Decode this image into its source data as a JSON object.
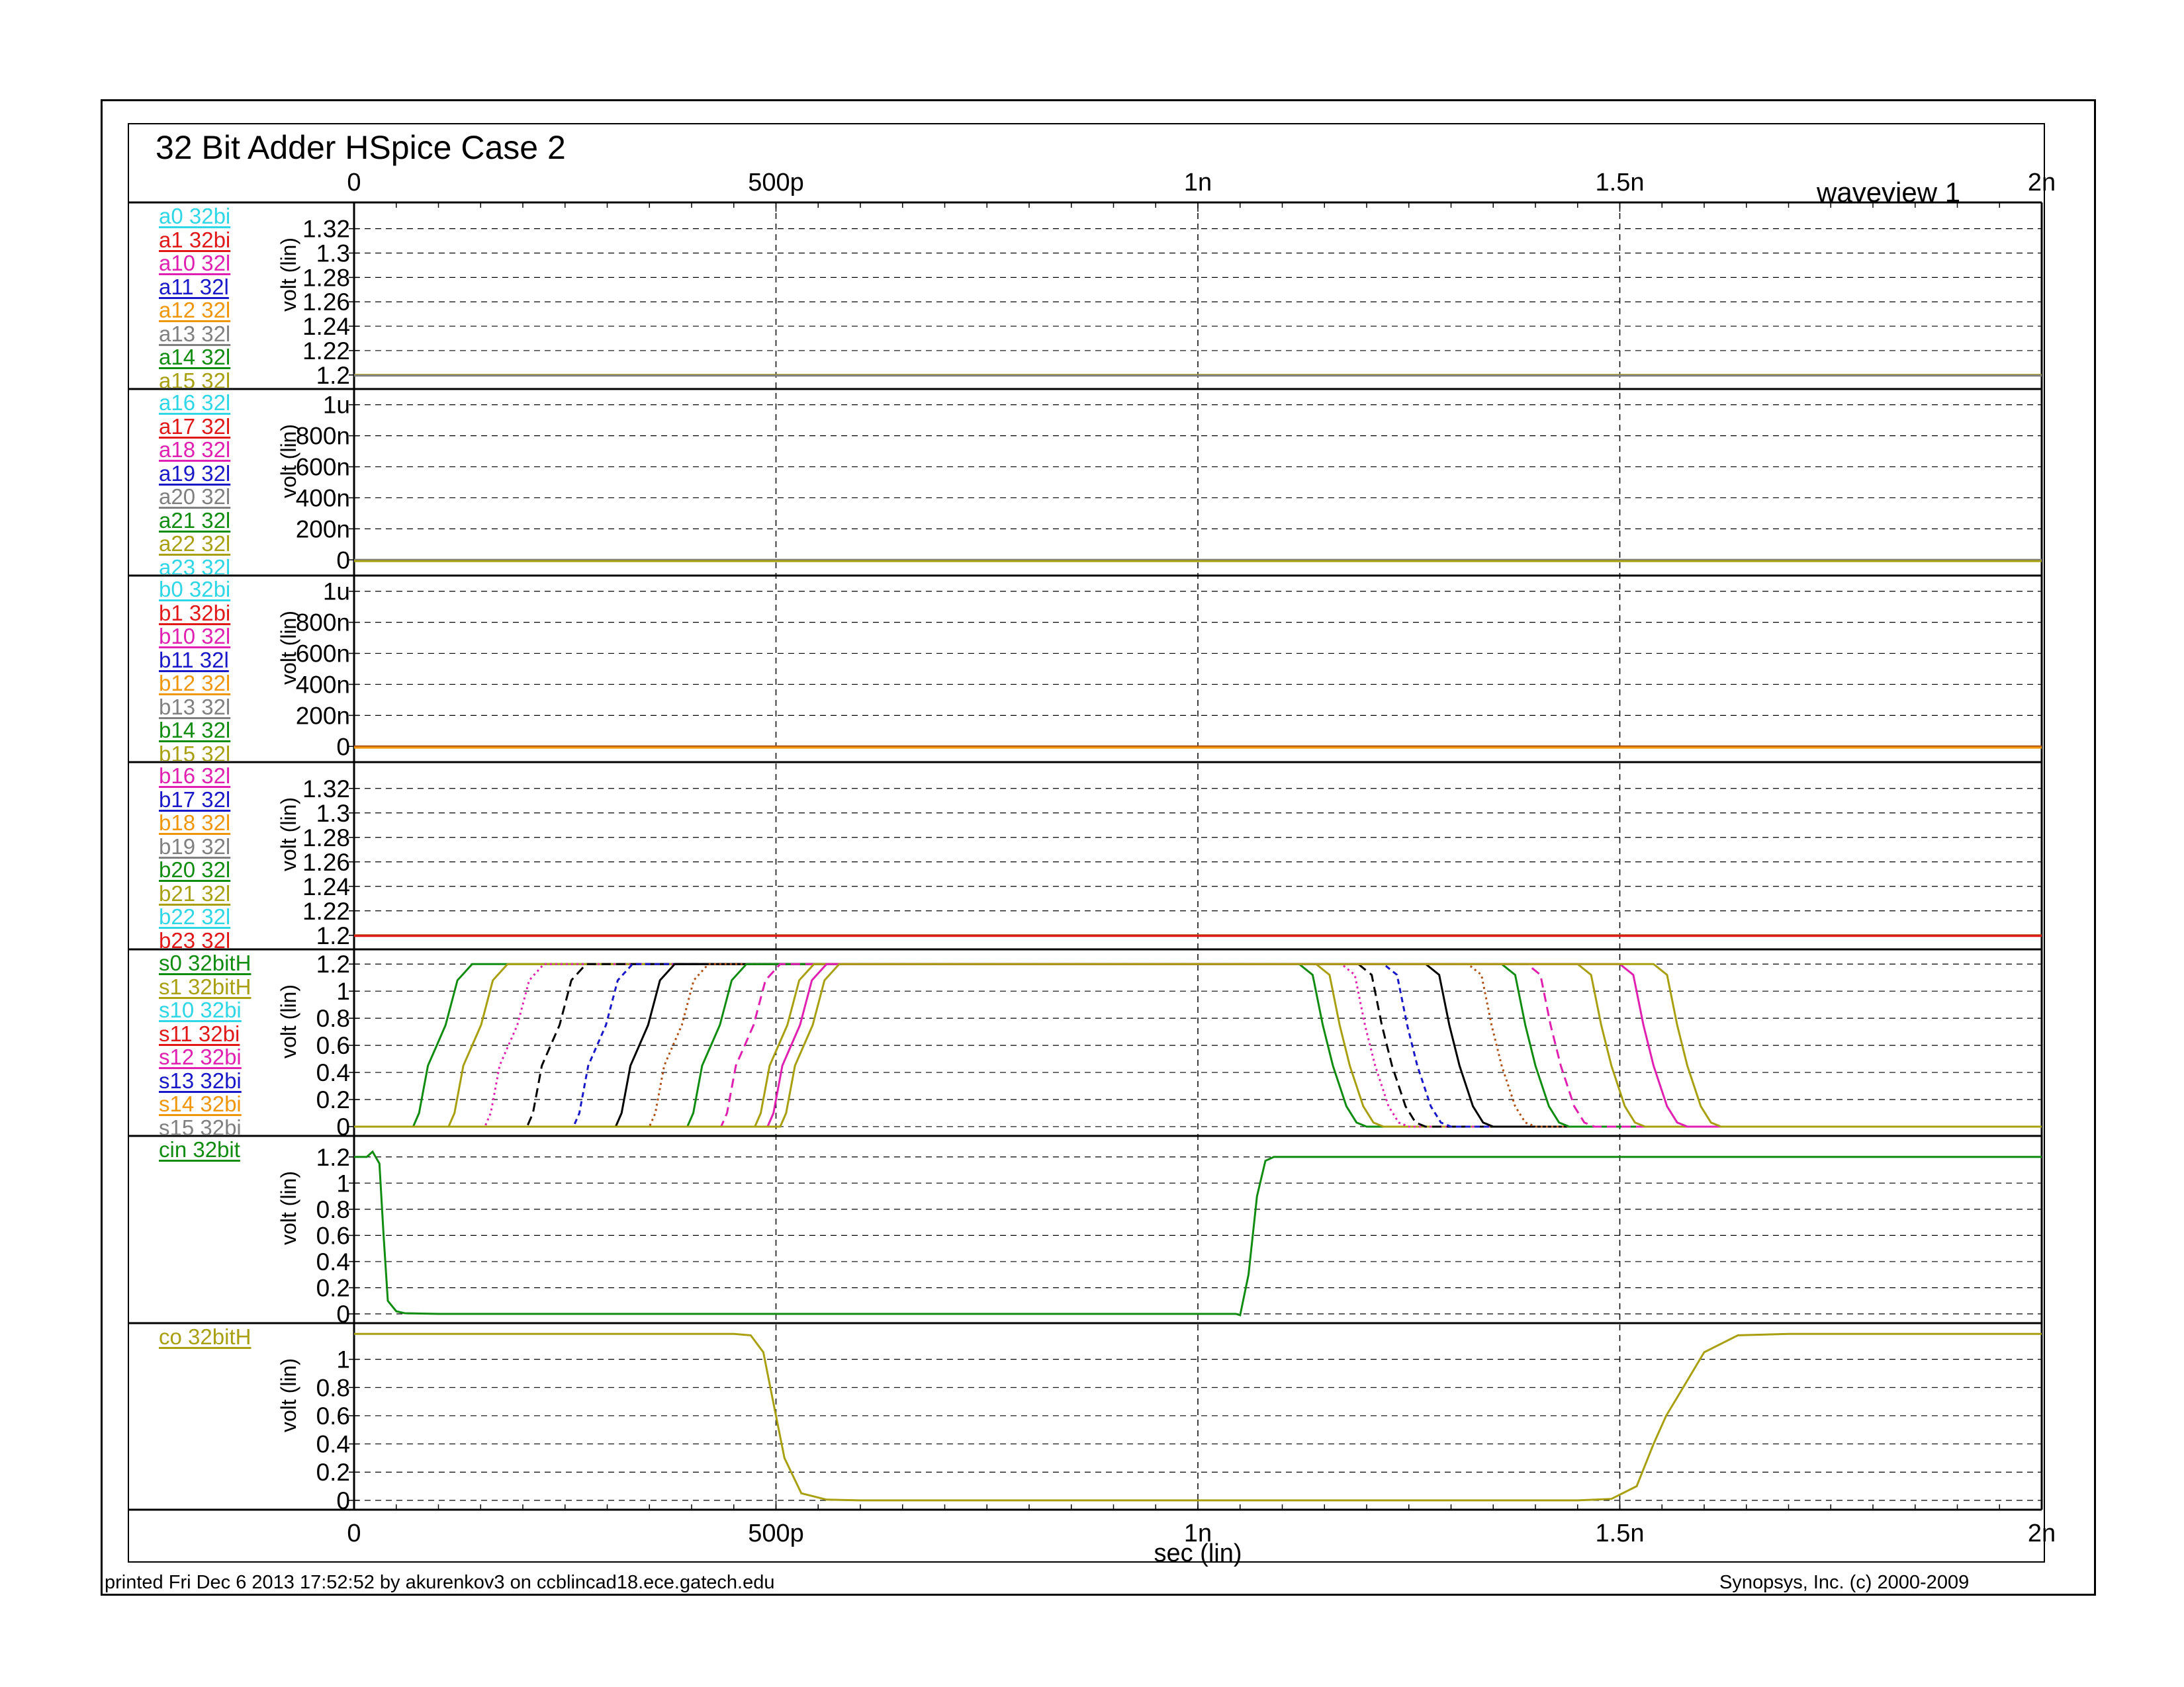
{
  "title": "32 Bit Adder HSpice Case 2",
  "window_label": "waveview 1",
  "footer_left": "printed Fri Dec  6 2013 17:52:52 by akurenkov3 on ccblincad18.ece.gatech.edu",
  "footer_right": "Synopsys, Inc. (c) 2000-2009",
  "colors": {
    "cyan": "#2ed6e6",
    "red": "#e01818",
    "magenta": "#e020b0",
    "blue": "#1818c8",
    "orange": "#f0960a",
    "gray": "#808080",
    "green": "#108c10",
    "olive": "#a8a010",
    "black": "#000000",
    "brown": "#b05010"
  },
  "chart_data": {
    "type": "line",
    "xlabel": "sec (lin)",
    "xlim": [
      0,
      2e-09
    ],
    "xticks": [
      {
        "v": 0,
        "label": "0"
      },
      {
        "v": 5e-10,
        "label": "500p"
      },
      {
        "v": 1e-09,
        "label": "1n"
      },
      {
        "v": 1.5e-09,
        "label": "1.5n"
      },
      {
        "v": 2e-09,
        "label": "2n"
      }
    ],
    "panels": [
      {
        "ylabel": "volt (lin)",
        "ylim": [
          1.195,
          1.335
        ],
        "yticks": [
          {
            "v": 1.32,
            "label": "1.32"
          },
          {
            "v": 1.3,
            "label": "1.3"
          },
          {
            "v": 1.28,
            "label": "1.28"
          },
          {
            "v": 1.26,
            "label": "1.26"
          },
          {
            "v": 1.24,
            "label": "1.24"
          },
          {
            "v": 1.22,
            "label": "1.22"
          },
          {
            "v": 1.2,
            "label": "1.2"
          }
        ],
        "legend": [
          {
            "label": "a0 32bi",
            "color": "cyan"
          },
          {
            "label": "a1 32bi",
            "color": "red"
          },
          {
            "label": "a10 32l",
            "color": "magenta"
          },
          {
            "label": "a11 32l",
            "color": "blue"
          },
          {
            "label": "a12 32l",
            "color": "orange"
          },
          {
            "label": "a13 32l",
            "color": "gray"
          },
          {
            "label": "a14 32l",
            "color": "green"
          },
          {
            "label": "a15 32l",
            "color": "olive"
          }
        ],
        "series": [
          {
            "color": "olive",
            "x": [
              0,
              2e-09
            ],
            "y": [
              1.2,
              1.2
            ]
          },
          {
            "color": "gray",
            "x": [
              0,
              2e-09
            ],
            "y": [
              1.1995,
              1.1995
            ]
          }
        ]
      },
      {
        "ylabel": "volt (lin)",
        "ylim": [
          -5e-08,
          1.05e-06
        ],
        "yticks": [
          {
            "v": 1e-06,
            "label": "1u"
          },
          {
            "v": 8e-07,
            "label": "800n"
          },
          {
            "v": 6e-07,
            "label": "600n"
          },
          {
            "v": 4e-07,
            "label": "400n"
          },
          {
            "v": 2e-07,
            "label": "200n"
          },
          {
            "v": 0,
            "label": "0"
          }
        ],
        "legend": [
          {
            "label": "a16 32l",
            "color": "cyan"
          },
          {
            "label": "a17 32l",
            "color": "red"
          },
          {
            "label": "a18 32l",
            "color": "magenta"
          },
          {
            "label": "a19 32l",
            "color": "blue"
          },
          {
            "label": "a20 32l",
            "color": "gray"
          },
          {
            "label": "a21 32l",
            "color": "green"
          },
          {
            "label": "a22 32l",
            "color": "olive"
          },
          {
            "label": "a23 32l",
            "color": "cyan"
          }
        ],
        "series": [
          {
            "color": "gray",
            "x": [
              0,
              2e-09
            ],
            "y": [
              0,
              0
            ]
          },
          {
            "color": "olive",
            "x": [
              0,
              2e-09
            ],
            "y": [
              -8e-09,
              -8e-09
            ]
          }
        ]
      },
      {
        "ylabel": "volt (lin)",
        "ylim": [
          -5e-08,
          1.05e-06
        ],
        "yticks": [
          {
            "v": 1e-06,
            "label": "1u"
          },
          {
            "v": 8e-07,
            "label": "800n"
          },
          {
            "v": 6e-07,
            "label": "600n"
          },
          {
            "v": 4e-07,
            "label": "400n"
          },
          {
            "v": 2e-07,
            "label": "200n"
          },
          {
            "v": 0,
            "label": "0"
          }
        ],
        "legend": [
          {
            "label": "b0 32bi",
            "color": "cyan"
          },
          {
            "label": "b1 32bi",
            "color": "red"
          },
          {
            "label": "b10 32l",
            "color": "magenta"
          },
          {
            "label": "b11 32l",
            "color": "blue"
          },
          {
            "label": "b12 32l",
            "color": "orange"
          },
          {
            "label": "b13 32l",
            "color": "gray"
          },
          {
            "label": "b14 32l",
            "color": "green"
          },
          {
            "label": "b15 32l",
            "color": "olive"
          }
        ],
        "series": [
          {
            "color": "brown",
            "x": [
              0,
              2e-09
            ],
            "y": [
              0,
              0
            ]
          },
          {
            "color": "orange",
            "x": [
              0,
              2e-09
            ],
            "y": [
              -8e-09,
              -8e-09
            ]
          }
        ]
      },
      {
        "ylabel": "volt (lin)",
        "ylim": [
          1.195,
          1.335
        ],
        "yticks": [
          {
            "v": 1.32,
            "label": "1.32"
          },
          {
            "v": 1.3,
            "label": "1.3"
          },
          {
            "v": 1.28,
            "label": "1.28"
          },
          {
            "v": 1.26,
            "label": "1.26"
          },
          {
            "v": 1.24,
            "label": "1.24"
          },
          {
            "v": 1.22,
            "label": "1.22"
          },
          {
            "v": 1.2,
            "label": "1.2"
          }
        ],
        "legend": [
          {
            "label": "b16 32l",
            "color": "magenta"
          },
          {
            "label": "b17 32l",
            "color": "blue"
          },
          {
            "label": "b18 32l",
            "color": "orange"
          },
          {
            "label": "b19 32l",
            "color": "gray"
          },
          {
            "label": "b20 32l",
            "color": "green"
          },
          {
            "label": "b21 32l",
            "color": "olive"
          },
          {
            "label": "b22 32l",
            "color": "cyan"
          },
          {
            "label": "b23 32l",
            "color": "red"
          }
        ],
        "series": [
          {
            "color": "brown",
            "x": [
              0,
              2e-09
            ],
            "y": [
              1.2,
              1.2
            ]
          },
          {
            "color": "red",
            "x": [
              0,
              2e-09
            ],
            "y": [
              1.1995,
              1.1995
            ]
          }
        ]
      },
      {
        "ylabel": "volt (lin)",
        "ylim": [
          -0.01,
          1.25
        ],
        "yticks": [
          {
            "v": 1.2,
            "label": "1.2"
          },
          {
            "v": 1,
            "label": "1"
          },
          {
            "v": 0.8,
            "label": "0.8"
          },
          {
            "v": 0.6,
            "label": "0.6"
          },
          {
            "v": 0.4,
            "label": "0.4"
          },
          {
            "v": 0.2,
            "label": "0.2"
          },
          {
            "v": 0,
            "label": "0"
          }
        ],
        "legend": [
          {
            "label": "s0 32bitH",
            "color": "green"
          },
          {
            "label": "s1 32bitH",
            "color": "olive"
          },
          {
            "label": "s10 32bi",
            "color": "cyan"
          },
          {
            "label": "s11 32bi",
            "color": "red"
          },
          {
            "label": "s12 32bi",
            "color": "magenta"
          },
          {
            "label": "s13 32bi",
            "color": "blue"
          },
          {
            "label": "s14 32bi",
            "color": "orange"
          },
          {
            "label": "s15 32bi",
            "color": "gray"
          }
        ],
        "transitions": [
          {
            "color": "green",
            "dash": "",
            "rise": 7e-11,
            "fall": 1.12e-09
          },
          {
            "color": "olive",
            "dash": "",
            "rise": 1.12e-10,
            "fall": 1.14e-09
          },
          {
            "color": "magenta",
            "dash": "dot",
            "rise": 1.55e-10,
            "fall": 1.17e-09
          },
          {
            "color": "black",
            "dash": "long",
            "rise": 2.05e-10,
            "fall": 1.19e-09
          },
          {
            "color": "blue",
            "dash": "short",
            "rise": 2.6e-10,
            "fall": 1.22e-09
          },
          {
            "color": "black",
            "dash": "",
            "rise": 3.1e-10,
            "fall": 1.27e-09
          },
          {
            "color": "brown",
            "dash": "dot",
            "rise": 3.5e-10,
            "fall": 1.32e-09
          },
          {
            "color": "green",
            "dash": "",
            "rise": 3.95e-10,
            "fall": 1.36e-09
          },
          {
            "color": "magenta",
            "dash": "long",
            "rise": 4.35e-10,
            "fall": 1.39e-09
          },
          {
            "color": "olive",
            "dash": "",
            "rise": 4.75e-10,
            "fall": 1.45e-09
          },
          {
            "color": "magenta",
            "dash": "",
            "rise": 4.9e-10,
            "fall": 1.5e-09
          },
          {
            "color": "olive",
            "dash": "",
            "rise": 5.05e-10,
            "fall": 1.54e-09
          }
        ]
      },
      {
        "ylabel": "volt (lin)",
        "ylim": [
          -0.01,
          1.3
        ],
        "yticks": [
          {
            "v": 1.2,
            "label": "1.2"
          },
          {
            "v": 1,
            "label": "1"
          },
          {
            "v": 0.8,
            "label": "0.8"
          },
          {
            "v": 0.6,
            "label": "0.6"
          },
          {
            "v": 0.4,
            "label": "0.4"
          },
          {
            "v": 0.2,
            "label": "0.2"
          },
          {
            "v": 0,
            "label": "0"
          }
        ],
        "legend": [
          {
            "label": "cin 32bit",
            "color": "green"
          }
        ],
        "series": [
          {
            "color": "green",
            "x": [
              0,
              1.5e-11,
              2.2e-11,
              3e-11,
              3.5e-11,
              4e-11,
              5e-11,
              6e-11,
              1e-10,
              1.045e-09,
              1.05e-09,
              1.06e-09,
              1.07e-09,
              1.08e-09,
              1.09e-09,
              1.1e-09,
              2e-09
            ],
            "y": [
              1.2,
              1.2,
              1.24,
              1.15,
              0.6,
              0.1,
              0.02,
              0.005,
              0,
              0,
              -0.01,
              0.3,
              0.9,
              1.17,
              1.2,
              1.2,
              1.2
            ]
          }
        ]
      },
      {
        "ylabel": "volt (lin)",
        "ylim": [
          -0.01,
          1.2
        ],
        "yticks": [
          {
            "v": 1,
            "label": "1"
          },
          {
            "v": 0.8,
            "label": "0.8"
          },
          {
            "v": 0.6,
            "label": "0.6"
          },
          {
            "v": 0.4,
            "label": "0.4"
          },
          {
            "v": 0.2,
            "label": "0.2"
          },
          {
            "v": 0,
            "label": "0"
          }
        ],
        "legend": [
          {
            "label": "co 32bitH",
            "color": "olive"
          }
        ],
        "series": [
          {
            "color": "olive",
            "x": [
              0,
              4.5e-10,
              4.7e-10,
              4.85e-10,
              4.95e-10,
              5e-10,
              5.1e-10,
              5.3e-10,
              5.6e-10,
              6e-10,
              1.45e-09,
              1.49e-09,
              1.52e-09,
              1.54e-09,
              1.555e-09,
              1.57e-09,
              1.6e-09,
              1.64e-09,
              1.7e-09,
              2e-09
            ],
            "y": [
              1.18,
              1.18,
              1.17,
              1.05,
              0.75,
              0.6,
              0.3,
              0.05,
              0.005,
              0,
              0,
              0.01,
              0.1,
              0.4,
              0.6,
              0.75,
              1.05,
              1.17,
              1.18,
              1.18
            ]
          }
        ]
      }
    ]
  }
}
